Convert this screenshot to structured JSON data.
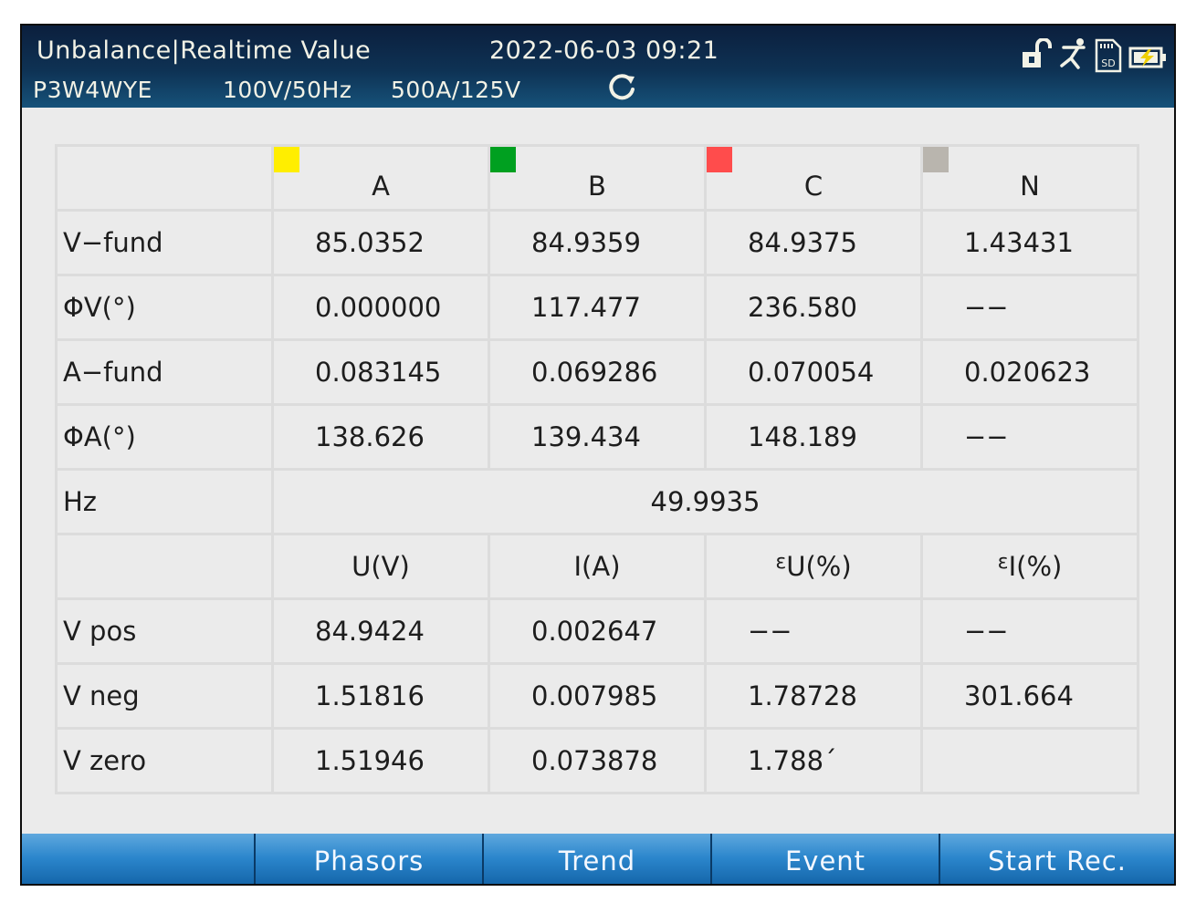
{
  "header": {
    "title": "Unbalance|Realtime  Value",
    "datetime": "2022-06-03  09:21",
    "wiring": "P3W4WYE",
    "nominal": "100V/50Hz",
    "range": "500A/125V",
    "icons": [
      "refresh-icon",
      "lock-open-icon",
      "person-icon",
      "sd-card-icon",
      "battery-charging-icon"
    ]
  },
  "phase_header": {
    "cols": [
      {
        "label": "A",
        "color": "#ffee00"
      },
      {
        "label": "B",
        "color": "#00a020"
      },
      {
        "label": "C",
        "color": "#ff4c4c"
      },
      {
        "label": "N",
        "color": "#b9b5ae"
      }
    ]
  },
  "rows": {
    "vfund": {
      "label": "V−fund",
      "a": "85.0352",
      "b": "84.9359",
      "c": "84.9375",
      "n": "1.43431"
    },
    "phiv": {
      "label": "ΦV(°)",
      "a": "0.000000",
      "b": "117.477",
      "c": "236.580",
      "n": "−−"
    },
    "afund": {
      "label": "A−fund",
      "a": "0.083145",
      "b": "0.069286",
      "c": "0.070054",
      "n": "0.020623"
    },
    "phia": {
      "label": "ΦA(°)",
      "a": "138.626",
      "b": "139.434",
      "c": "148.189",
      "n": "−−"
    },
    "hz": {
      "label": "Hz",
      "value": "49.9935"
    }
  },
  "seq_header": {
    "u": "U(V)",
    "i": "I(A)",
    "eu_sym": "ε",
    "eu": "U(%)",
    "ei_sym": "ε",
    "ei": "I(%)"
  },
  "seq_rows": {
    "pos": {
      "label": "V  pos",
      "u": "84.9424",
      "i": "0.002647",
      "eu": "−−",
      "ei": "−−"
    },
    "neg": {
      "label": "V  neg",
      "u": "1.51816",
      "i": "0.007985",
      "eu": "1.78728",
      "ei": "301.664"
    },
    "zero": {
      "label": "V  zero",
      "u": "1.51946",
      "i": "0.073878",
      "eu": "1.788´",
      "ei": ""
    }
  },
  "footer": {
    "buttons": [
      "",
      "Phasors",
      "Trend",
      "Event",
      "Start  Rec."
    ]
  }
}
